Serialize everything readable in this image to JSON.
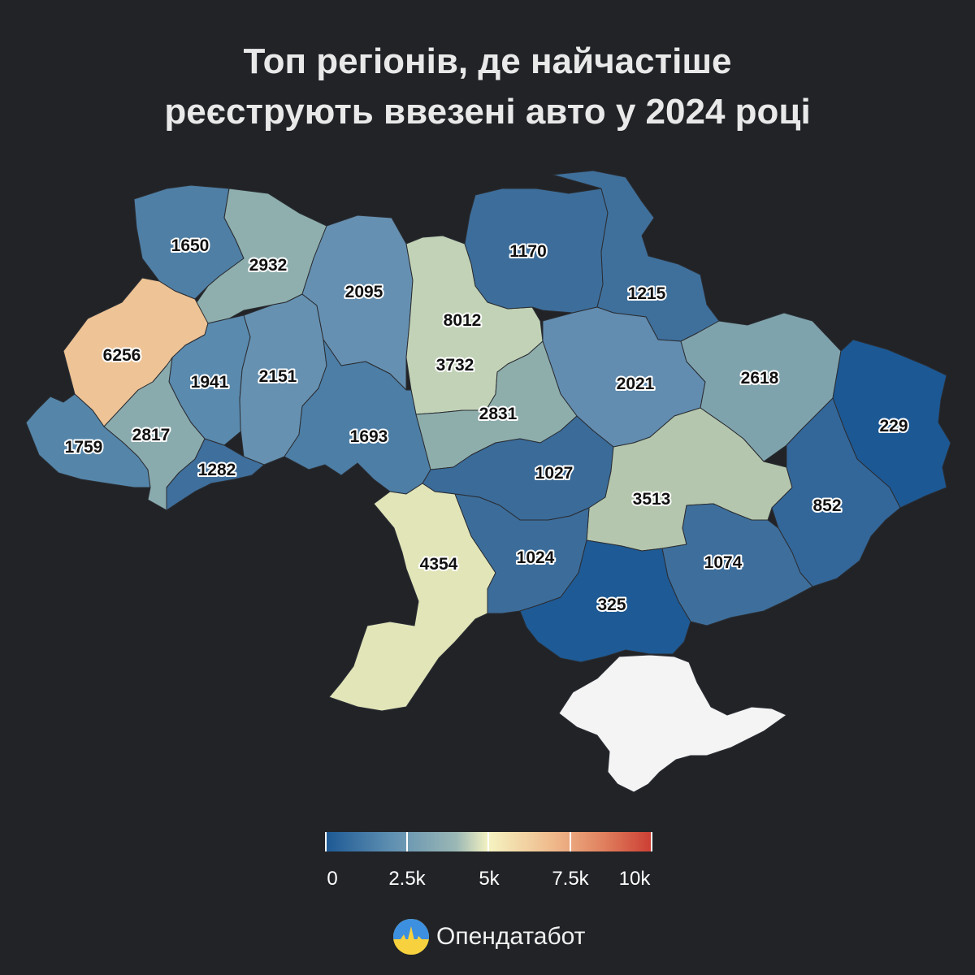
{
  "title": {
    "line1": "Топ регіонів, де найчастіше",
    "line2": "реєструють ввезені авто у 2024 році"
  },
  "regions": [
    {
      "value": "1650",
      "color": "#4f7fa5"
    },
    {
      "value": "2932",
      "color": "#8eafad"
    },
    {
      "value": "6256",
      "color": "#eec395"
    },
    {
      "value": "1941",
      "color": "#5a8aae"
    },
    {
      "value": "2151",
      "color": "#6691b1"
    },
    {
      "value": "2095",
      "color": "#6690b1"
    },
    {
      "value": "8012",
      "color": "#d2664f"
    },
    {
      "value": "3732",
      "color": "#c1d2b6"
    },
    {
      "value": "1170",
      "color": "#3d6e9b"
    },
    {
      "value": "1215",
      "color": "#3f709c"
    },
    {
      "value": "2021",
      "color": "#628db0"
    },
    {
      "value": "2618",
      "color": "#7fa3ac"
    },
    {
      "value": "229",
      "color": "#1c5894"
    },
    {
      "value": "1759",
      "color": "#5586aa"
    },
    {
      "value": "2817",
      "color": "#8aabae"
    },
    {
      "value": "1282",
      "color": "#3f6f9c"
    },
    {
      "value": "1693",
      "color": "#4d7ea6"
    },
    {
      "value": "2831",
      "color": "#8eaeac"
    },
    {
      "value": "1027",
      "color": "#3a6b99"
    },
    {
      "value": "3513",
      "color": "#b4c6ad"
    },
    {
      "value": "852",
      "color": "#33679a"
    },
    {
      "value": "4354",
      "color": "#e2e5b8"
    },
    {
      "value": "1024",
      "color": "#3c6d9a"
    },
    {
      "value": "1074",
      "color": "#3e6f9c"
    },
    {
      "value": "325",
      "color": "#1e5a95"
    }
  ],
  "crimea_color": "#f4f4f4",
  "legend": {
    "ticks": [
      "0",
      "2.5k",
      "5k",
      "7.5k",
      "10k"
    ],
    "min": 0,
    "max": 10000,
    "colors": [
      "#1c5894",
      "#9ab7b5",
      "#f5f3c1",
      "#efb88a",
      "#cc3d33"
    ]
  },
  "brand": {
    "name": "Опендатабот"
  }
}
